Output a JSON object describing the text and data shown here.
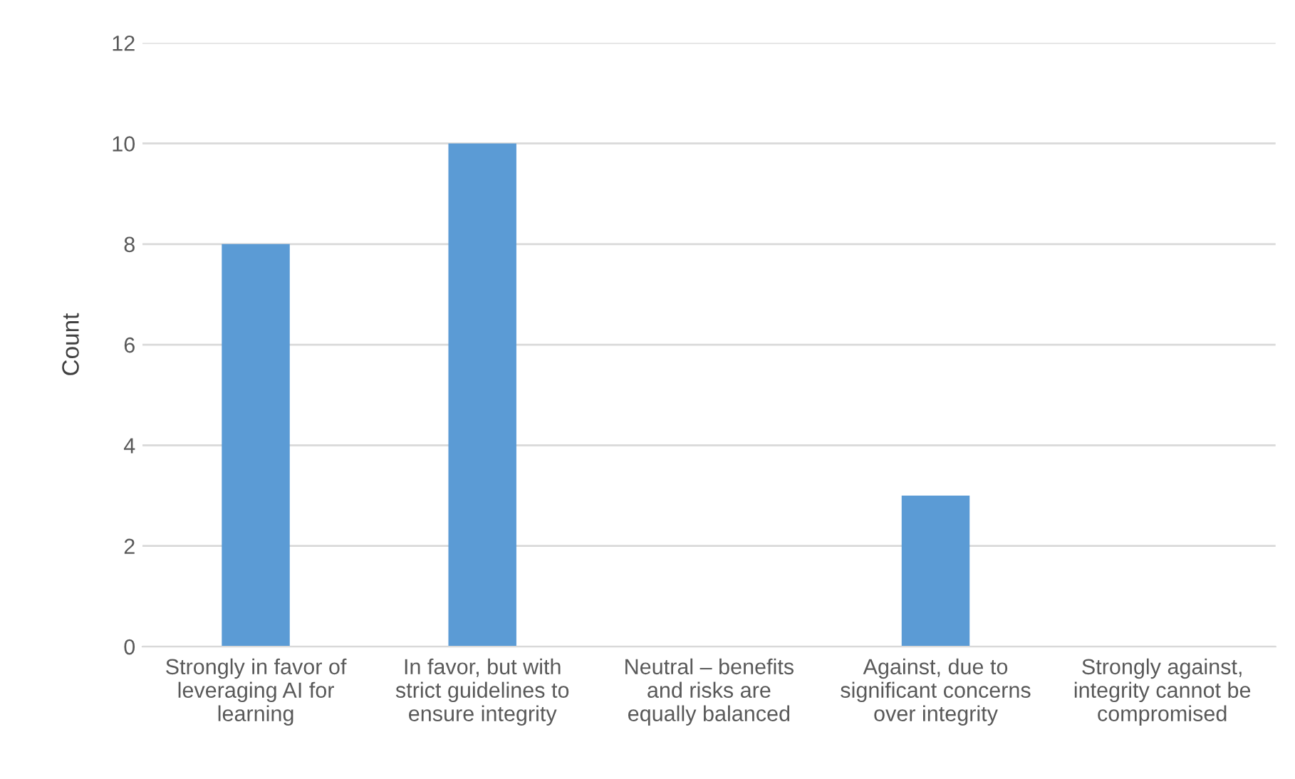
{
  "chart_data": {
    "type": "bar",
    "ylabel": "Count",
    "categories": [
      "Strongly in favor of\nleveraging AI for\nlearning",
      "In favor, but with\nstrict guidelines to\nensure integrity",
      "Neutral – benefits\nand risks are\nequally balanced",
      "Against, due to\nsignificant concerns\nover integrity",
      "Strongly against,\nintegrity cannot be\ncompromised"
    ],
    "values": [
      8,
      10,
      0,
      3,
      0
    ],
    "color": "#5b9bd5",
    "ylim": [
      0,
      12
    ],
    "yticks": [
      0,
      2,
      4,
      6,
      8,
      10,
      12
    ],
    "grid": "y",
    "legend": false
  }
}
